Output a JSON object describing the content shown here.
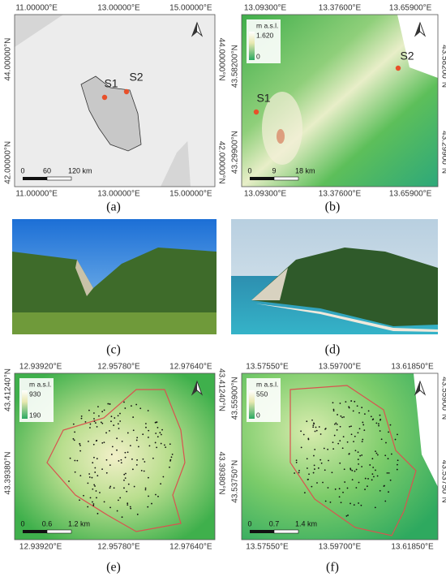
{
  "panels": [
    {
      "caption": "(a)",
      "x_labels": [
        "11.00000°E",
        "13.00000°E",
        "15.00000°E"
      ],
      "y_labels": [
        "44.00000°N",
        "42.00000°N"
      ],
      "sites": [
        "S1",
        "S2"
      ],
      "scale": [
        "0",
        "60",
        "120 km"
      ]
    },
    {
      "caption": "(b)",
      "x_labels": [
        "13.09300°E",
        "13.37600°E",
        "13.65900°E"
      ],
      "y_labels": [
        "43.58200°N",
        "43.29900°N"
      ],
      "sites": [
        "S1",
        "S2"
      ],
      "legend": {
        "title": "m a.s.l.",
        "max": "1.620",
        "min": "0"
      },
      "scale": [
        "0",
        "9",
        "18 km"
      ]
    },
    {
      "caption": "(c)"
    },
    {
      "caption": "(d)"
    },
    {
      "caption": "(e)",
      "x_labels": [
        "12.93920°E",
        "12.95780°E",
        "12.97640°E"
      ],
      "y_labels": [
        "43.41240°N",
        "43.39380°N"
      ],
      "legend": {
        "title": "m a.s.l.",
        "max": "930",
        "min": "190"
      },
      "scale": [
        "0",
        "0.6",
        "1.2 km"
      ]
    },
    {
      "caption": "(f)",
      "x_labels": [
        "13.57550°E",
        "13.59700°E",
        "13.61850°E"
      ],
      "y_labels": [
        "43.55900°N",
        "43.53750°N"
      ],
      "legend": {
        "title": "m a.s.l.",
        "max": "550",
        "min": "0"
      },
      "scale": [
        "0",
        "0.7",
        "1.4 km"
      ]
    }
  ]
}
